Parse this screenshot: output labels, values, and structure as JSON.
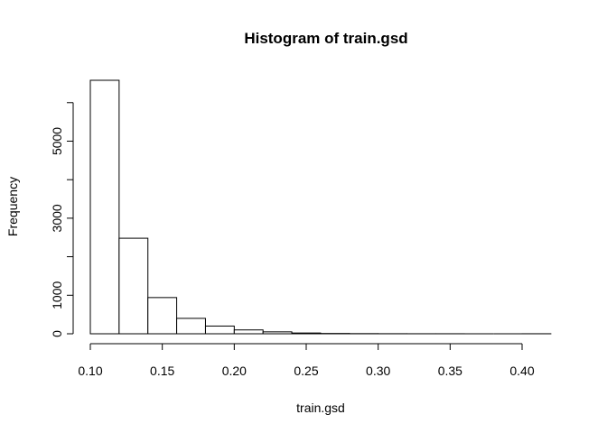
{
  "chart_data": {
    "type": "bar",
    "title": "Histogram of train.gsd",
    "xlabel": "train.gsd",
    "ylabel": "Frequency",
    "bins": [
      {
        "start": 0.1,
        "end": 0.12,
        "count": 6580
      },
      {
        "start": 0.12,
        "end": 0.14,
        "count": 2480
      },
      {
        "start": 0.14,
        "end": 0.16,
        "count": 940
      },
      {
        "start": 0.16,
        "end": 0.18,
        "count": 400
      },
      {
        "start": 0.18,
        "end": 0.2,
        "count": 200
      },
      {
        "start": 0.2,
        "end": 0.22,
        "count": 100
      },
      {
        "start": 0.22,
        "end": 0.24,
        "count": 50
      },
      {
        "start": 0.24,
        "end": 0.26,
        "count": 20
      },
      {
        "start": 0.26,
        "end": 0.28,
        "count": 8
      },
      {
        "start": 0.28,
        "end": 0.3,
        "count": 4
      },
      {
        "start": 0.3,
        "end": 0.32,
        "count": 2
      },
      {
        "start": 0.32,
        "end": 0.34,
        "count": 1
      },
      {
        "start": 0.34,
        "end": 0.36,
        "count": 1
      },
      {
        "start": 0.36,
        "end": 0.38,
        "count": 0
      },
      {
        "start": 0.38,
        "end": 0.4,
        "count": 0
      },
      {
        "start": 0.4,
        "end": 0.42,
        "count": 1
      }
    ],
    "xlim": [
      0.1,
      0.42
    ],
    "ylim": [
      0,
      6580
    ],
    "x_ticks": [
      0.1,
      0.15,
      0.2,
      0.25,
      0.3,
      0.35,
      0.4
    ],
    "x_tick_labels": [
      "0.10",
      "0.15",
      "0.20",
      "0.25",
      "0.30",
      "0.35",
      "0.40"
    ],
    "y_ticks": [
      0,
      1000,
      3000,
      5000
    ],
    "y_tick_labels": [
      "0",
      "1000",
      "3000",
      "5000"
    ],
    "y_axis_max": 6000,
    "grid": false,
    "legend": "none"
  }
}
